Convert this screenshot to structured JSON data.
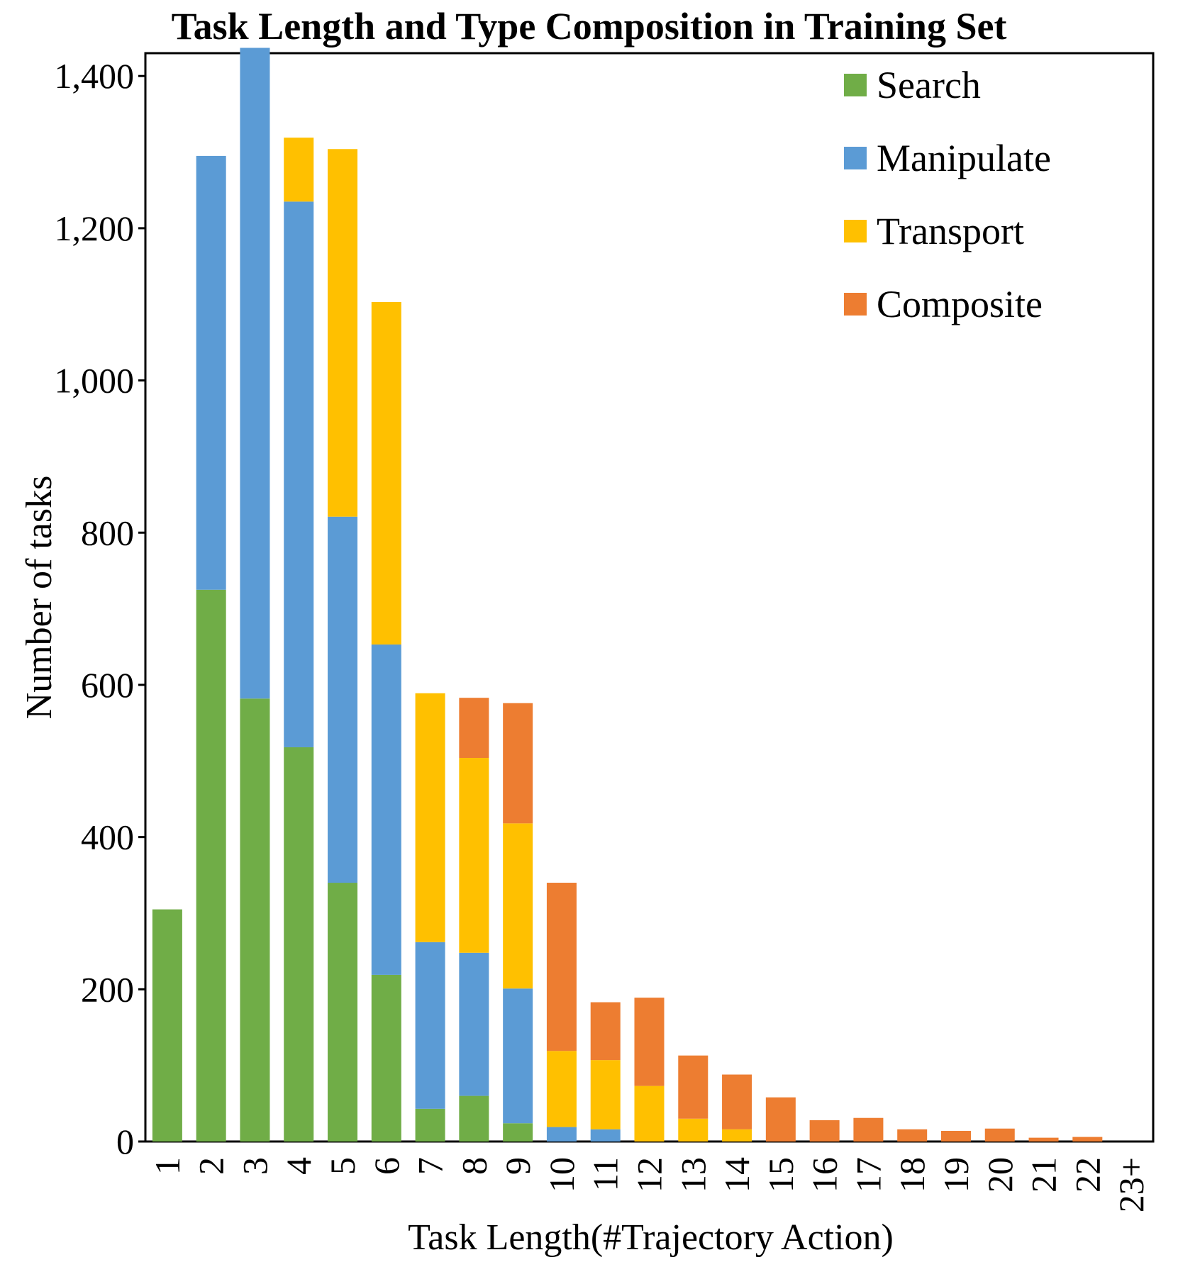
{
  "chart_data": {
    "type": "bar",
    "stacked": true,
    "title": "Task Length and Type Composition in Training Set",
    "xlabel": "Task Length(#Trajectory Action)",
    "ylabel": "Number of tasks",
    "ylim": [
      0,
      1430
    ],
    "yticks": [
      0,
      200,
      400,
      600,
      800,
      1000,
      1200,
      1400
    ],
    "ytick_labels": [
      "0",
      "200",
      "400",
      "600",
      "800",
      "1,000",
      "1,200",
      "1,400"
    ],
    "grid": false,
    "legend_position": "top-right",
    "categories": [
      "1",
      "2",
      "3",
      "4",
      "5",
      "6",
      "7",
      "8",
      "9",
      "10",
      "11",
      "12",
      "13",
      "14",
      "15",
      "16",
      "17",
      "18",
      "19",
      "20",
      "21",
      "22",
      "23+"
    ],
    "series": [
      {
        "name": "Search",
        "color": "#70AD47",
        "values": [
          305,
          725,
          582,
          518,
          340,
          219,
          43,
          60,
          24,
          0,
          0,
          0,
          0,
          0,
          0,
          0,
          0,
          0,
          0,
          0,
          0,
          0,
          0
        ]
      },
      {
        "name": "Manipulate",
        "color": "#5B9BD5",
        "values": [
          0,
          570,
          855,
          717,
          481,
          434,
          219,
          188,
          177,
          19,
          16,
          0,
          0,
          0,
          0,
          0,
          0,
          0,
          0,
          0,
          0,
          0,
          0
        ]
      },
      {
        "name": "Transport",
        "color": "#FFC000",
        "values": [
          0,
          0,
          0,
          84,
          483,
          450,
          327,
          256,
          217,
          100,
          91,
          73,
          30,
          16,
          0,
          0,
          0,
          0,
          0,
          0,
          0,
          0,
          0
        ]
      },
      {
        "name": "Composite",
        "color": "#ED7D31",
        "values": [
          0,
          0,
          0,
          0,
          0,
          0,
          0,
          79,
          158,
          221,
          76,
          116,
          83,
          72,
          58,
          28,
          31,
          16,
          14,
          17,
          5,
          6,
          0
        ]
      }
    ]
  }
}
